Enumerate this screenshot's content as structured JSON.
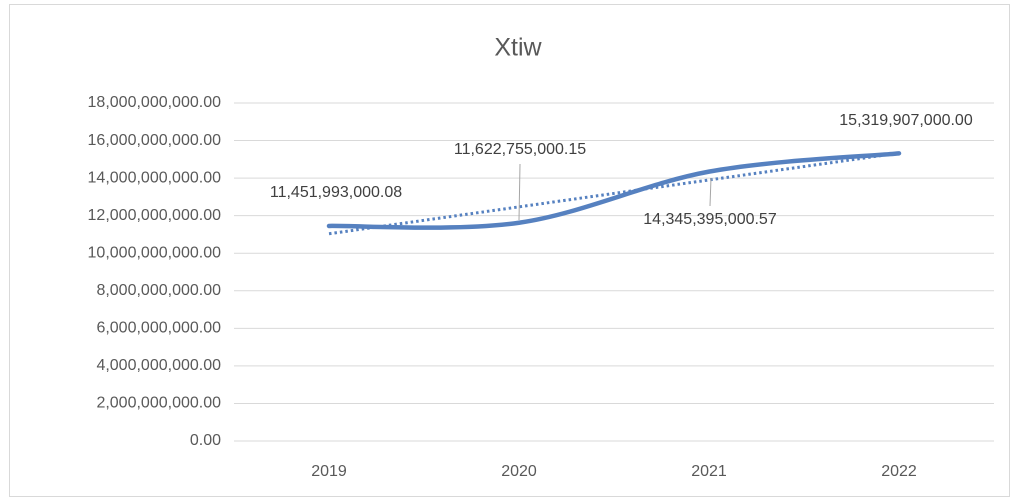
{
  "chart_data": {
    "type": "line",
    "title": "Xtiw",
    "categories": [
      "2019",
      "2020",
      "2021",
      "2022"
    ],
    "series": [
      {
        "color": "#5681c0",
        "values": [
          11451993000.08,
          11622755000.15,
          14345395000.57,
          15319907000.0
        ],
        "value_labels": [
          "11,451,993,000.08",
          "11,622,755,000.15",
          "14,345,395,000.57",
          "15,319,907,000.00"
        ]
      }
    ],
    "smooth": true,
    "trendline": "linear",
    "ylim": [
      0,
      18000000000
    ],
    "yticks": [
      {
        "value": 0,
        "label": "0.00"
      },
      {
        "value": 2000000000,
        "label": "2,000,000,000.00"
      },
      {
        "value": 4000000000,
        "label": "4,000,000,000.00"
      },
      {
        "value": 6000000000,
        "label": "6,000,000,000.00"
      },
      {
        "value": 8000000000,
        "label": "8,000,000,000.00"
      },
      {
        "value": 10000000000,
        "label": "10,000,000,000.00"
      },
      {
        "value": 12000000000,
        "label": "12,000,000,000.00"
      },
      {
        "value": 14000000000,
        "label": "14,000,000,000.00"
      },
      {
        "value": 16000000000,
        "label": "16,000,000,000.00"
      },
      {
        "value": 18000000000,
        "label": "18,000,000,000.00"
      }
    ],
    "grid": true
  }
}
